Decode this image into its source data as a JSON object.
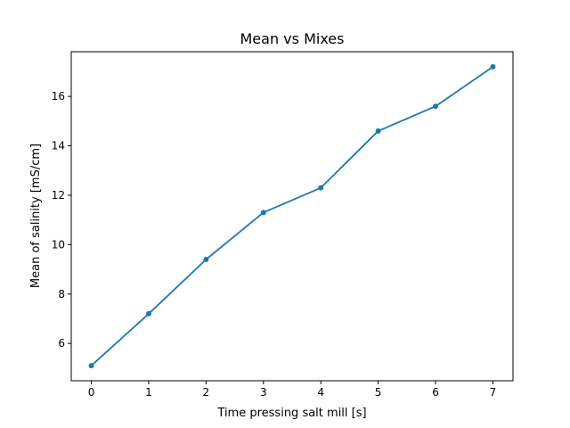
{
  "chart_data": {
    "type": "line",
    "title": "Mean vs Mixes",
    "xlabel": "Time pressing salt mill [s]",
    "ylabel": "Mean of salinity [mS/cm]",
    "x": [
      0,
      1,
      2,
      3,
      4,
      5,
      6,
      7
    ],
    "y": [
      5.1,
      7.2,
      9.4,
      11.3,
      12.3,
      14.6,
      15.6,
      17.2
    ],
    "xlim": [
      -0.35,
      7.35
    ],
    "ylim": [
      4.49,
      17.81
    ],
    "xticks": [
      0,
      1,
      2,
      3,
      4,
      5,
      6,
      7
    ],
    "yticks": [
      6,
      8,
      10,
      12,
      14,
      16
    ],
    "series_color": "#1f77b4",
    "marker": "circle",
    "grid": false,
    "legend": false
  }
}
